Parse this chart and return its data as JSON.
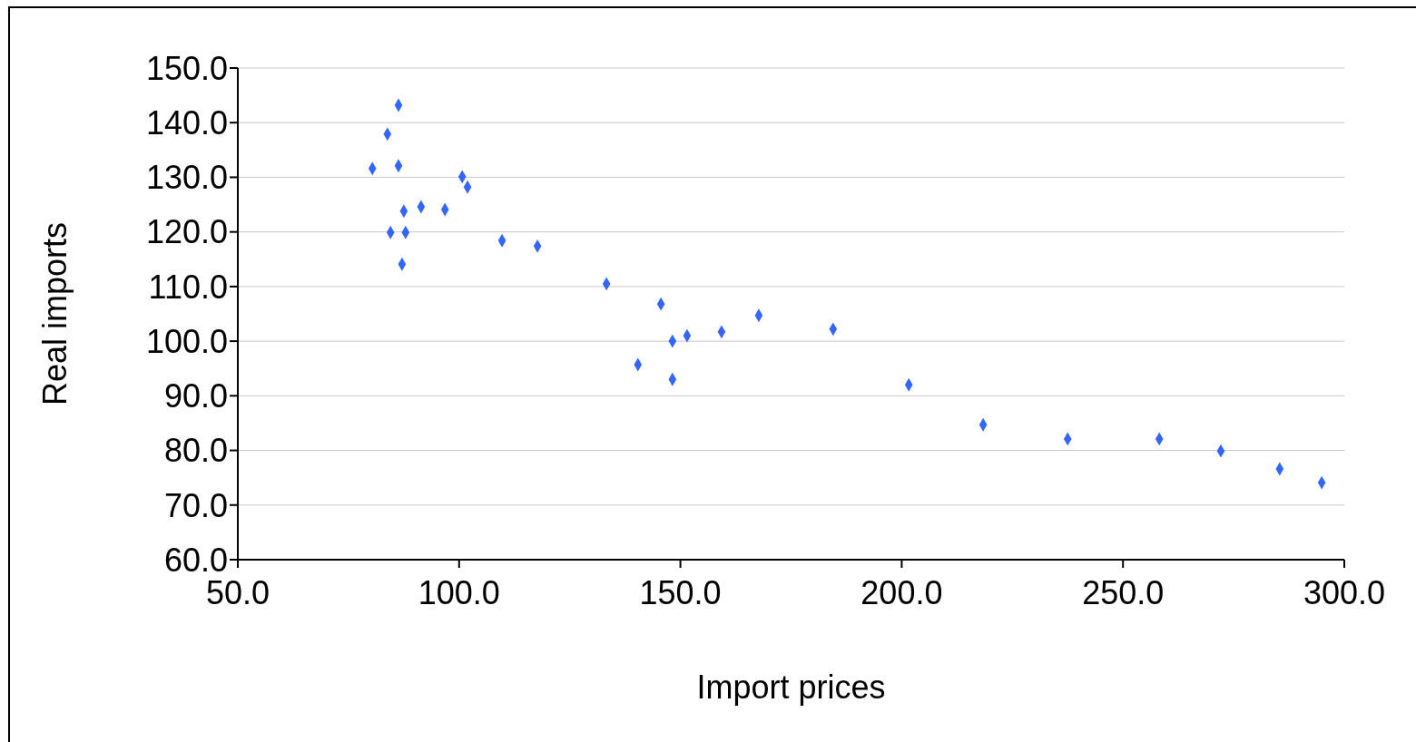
{
  "chart_data": {
    "type": "scatter",
    "xlabel": "Import prices",
    "ylabel": "Real imports",
    "x": [
      80.4,
      83.8,
      86.3,
      86.3,
      84.5,
      87.5,
      87.9,
      87.1,
      91.4,
      96.8,
      100.7,
      101.9,
      109.7,
      117.7,
      133.3,
      140.4,
      145.6,
      148.2,
      148.2,
      151.5,
      159.3,
      167.7,
      184.5,
      201.6,
      218.4,
      237.5,
      258.2,
      272.1,
      285.4,
      294.9
    ],
    "values": [
      131.6,
      137.9,
      143.2,
      132.1,
      119.9,
      123.8,
      119.9,
      114.1,
      124.6,
      124.1,
      130.1,
      128.2,
      118.4,
      117.4,
      110.5,
      95.7,
      106.8,
      100.0,
      93.0,
      101.0,
      101.7,
      104.7,
      102.2,
      92.0,
      84.7,
      82.1,
      82.1,
      79.9,
      76.6,
      74.1
    ],
    "color": "#3366ff",
    "marker": "diamond",
    "grid": "y",
    "legend": false,
    "xlim": [
      50,
      300
    ],
    "xticks": [
      {
        "value": 50,
        "label": "50.0"
      },
      {
        "value": 100,
        "label": "100.0"
      },
      {
        "value": 150,
        "label": "150.0"
      },
      {
        "value": 200,
        "label": "200.0"
      },
      {
        "value": 250,
        "label": "250.0"
      },
      {
        "value": 300,
        "label": "300.0"
      }
    ],
    "ylim": [
      60,
      150
    ],
    "yticks": [
      {
        "value": 60,
        "label": "60.0"
      },
      {
        "value": 70,
        "label": "70.0"
      },
      {
        "value": 80,
        "label": "80.0"
      },
      {
        "value": 90,
        "label": "90.0"
      },
      {
        "value": 100,
        "label": "100.0"
      },
      {
        "value": 110,
        "label": "110.0"
      },
      {
        "value": 120,
        "label": "120.0"
      },
      {
        "value": 130,
        "label": "130.0"
      },
      {
        "value": 140,
        "label": "140.0"
      },
      {
        "value": 150,
        "label": "150.0"
      }
    ]
  }
}
